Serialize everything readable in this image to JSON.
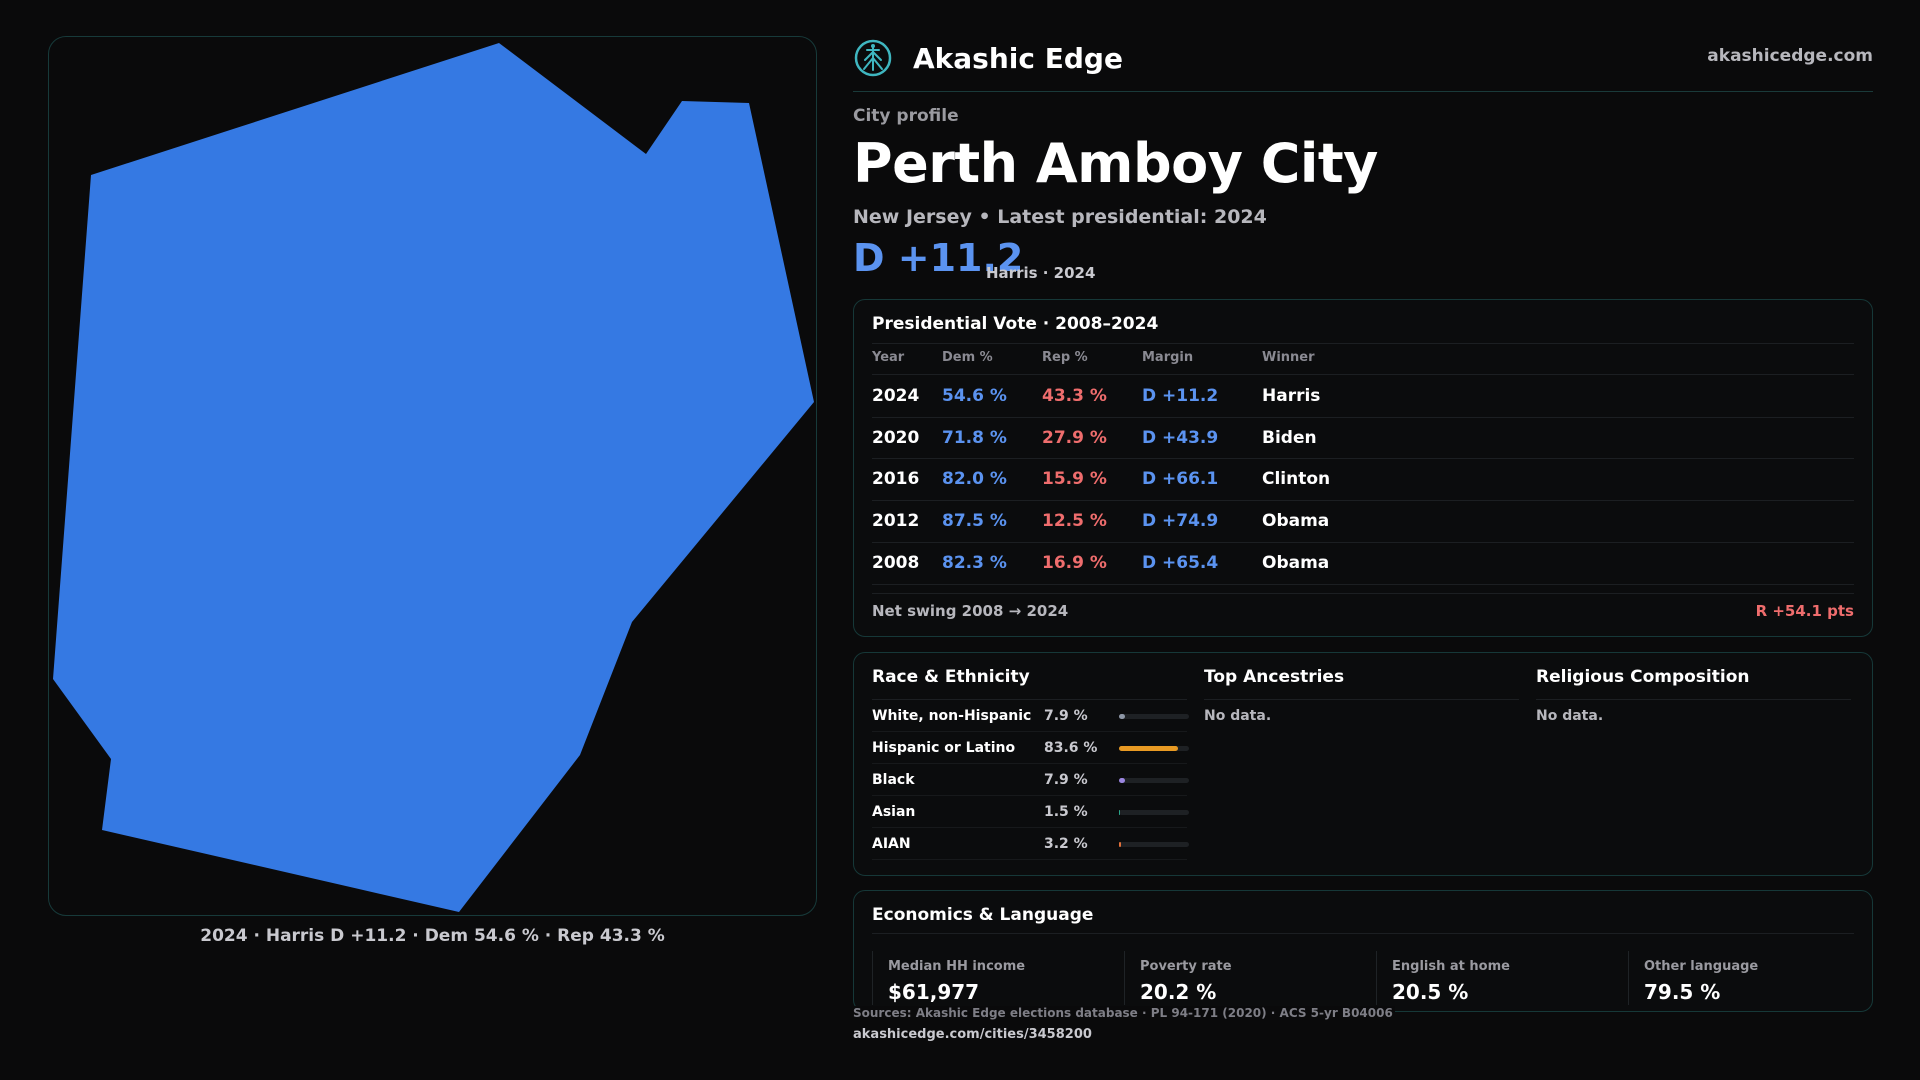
{
  "map": {
    "caption": "2024 · Harris D +11.2 · Dem 54.6 % · Rep 43.3 %",
    "fill_color": "#3579e3"
  },
  "brand": {
    "name": "Akashic Edge",
    "logo_icon": "tree-emblem-icon",
    "domain": "akashicedge.com"
  },
  "profile": {
    "eyebrow": "City profile",
    "city": "Perth Amboy City",
    "subtitle": "New Jersey • Latest presidential: 2024",
    "margin": "D +11.2",
    "margin_detail": "Harris · 2024"
  },
  "vote": {
    "title": "Presidential Vote · 2008–2024",
    "headers": [
      "Year",
      "Dem %",
      "Rep %",
      "Margin",
      "Winner"
    ],
    "rows": [
      {
        "year": "2024",
        "dem": "54.6 %",
        "rep": "43.3 %",
        "margin": "D +11.2",
        "winner": "Harris"
      },
      {
        "year": "2020",
        "dem": "71.8 %",
        "rep": "27.9 %",
        "margin": "D +43.9",
        "winner": "Biden"
      },
      {
        "year": "2016",
        "dem": "82.0 %",
        "rep": "15.9 %",
        "margin": "D +66.1",
        "winner": "Clinton"
      },
      {
        "year": "2012",
        "dem": "87.5 %",
        "rep": "12.5 %",
        "margin": "D +74.9",
        "winner": "Obama"
      },
      {
        "year": "2008",
        "dem": "82.3 %",
        "rep": "16.9 %",
        "margin": "D +65.4",
        "winner": "Obama"
      }
    ],
    "swing_label": "Net swing 2008 → 2024",
    "swing_value": "R +54.1 pts"
  },
  "race": {
    "title": "Race & Ethnicity",
    "rows": [
      {
        "label": "White, non-Hispanic",
        "pct": "7.9 %",
        "value": 7.9,
        "color": "#8e97a6"
      },
      {
        "label": "Hispanic or Latino",
        "pct": "83.6 %",
        "value": 83.6,
        "color": "#e89a23"
      },
      {
        "label": "Black",
        "pct": "7.9 %",
        "value": 7.9,
        "color": "#9b86e0"
      },
      {
        "label": "Asian",
        "pct": "1.5 %",
        "value": 1.5,
        "color": "#2aa58a"
      },
      {
        "label": "AIAN",
        "pct": "3.2 %",
        "value": 3.2,
        "color": "#e0703a"
      }
    ]
  },
  "ancestries": {
    "title": "Top Ancestries",
    "empty": "No data."
  },
  "religion": {
    "title": "Religious Composition",
    "empty": "No data."
  },
  "economics": {
    "title": "Economics & Language",
    "stats": [
      {
        "label": "Median HH income",
        "value": "$61,977"
      },
      {
        "label": "Poverty rate",
        "value": "20.2 %"
      },
      {
        "label": "English at home",
        "value": "20.5 %"
      },
      {
        "label": "Other language",
        "value": "79.5 %"
      }
    ]
  },
  "footer": {
    "sources": "Sources: Akashic Edge elections database · PL 94-171 (2020) · ACS 5-yr B04006",
    "url": "akashicedge.com/cities/3458200"
  }
}
